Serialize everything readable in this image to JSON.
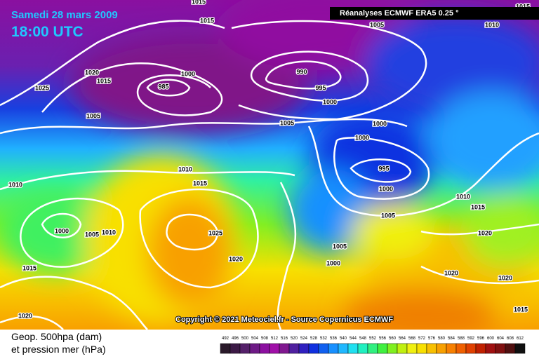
{
  "header": {
    "date": "Samedi 28 mars 2009",
    "time": "18:00 UTC",
    "source": "Réanalyses ECMWF ERA5 0.25 °",
    "copyright": "Copyright © 2021 Meteociel.fr - Source Copernicus ECMWF"
  },
  "legend": {
    "title_lines": [
      "Geop. 500hpa (dam)",
      "et pression mer (hPa)"
    ],
    "scale": [
      492,
      496,
      500,
      504,
      508,
      512,
      516,
      520,
      524,
      528,
      532,
      536,
      540,
      544,
      548,
      552,
      556,
      560,
      564,
      568,
      572,
      576,
      580,
      584,
      588,
      592,
      596,
      600,
      604,
      608,
      612
    ],
    "colors": [
      "#2a1a2a",
      "#3c1a46",
      "#55206a",
      "#6e1a86",
      "#8c10a0",
      "#a010a8",
      "#801890",
      "#5020a0",
      "#3020c0",
      "#1030e0",
      "#1060f0",
      "#1890ff",
      "#20b8ff",
      "#20e0f0",
      "#20f0c0",
      "#30f080",
      "#40f040",
      "#80f020",
      "#c0f010",
      "#f0f010",
      "#f8e000",
      "#f8c000",
      "#f8a000",
      "#f88000",
      "#f06000",
      "#e04000",
      "#c02000",
      "#a01010",
      "#801010",
      "#501010",
      "#101010"
    ]
  },
  "isobar_labels": [
    "1015",
    "1015",
    "1005",
    "1010",
    "1015",
    "1020",
    "1015",
    "1025",
    "1000",
    "985",
    "990",
    "995",
    "1000",
    "1005",
    "1005",
    "1000",
    "1000",
    "1010",
    "1015",
    "1010",
    "995",
    "1000",
    "1010",
    "1015",
    "1005",
    "1020",
    "1000",
    "1005",
    "1010",
    "1025",
    "1005",
    "1000",
    "1020",
    "1020",
    "1020",
    "1015",
    "1015",
    "1020"
  ]
}
